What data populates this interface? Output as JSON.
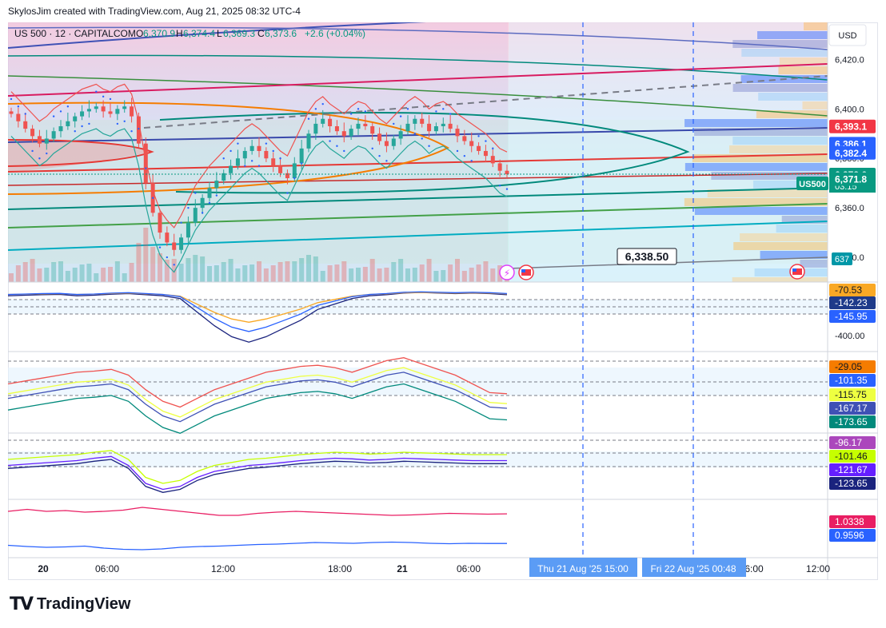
{
  "header": {
    "attribution": "SkylosJim created with TradingView.com, Aug 21, 2025 08:32 UTC-4"
  },
  "legend": {
    "symbol": "US 500 · 12 · CAPITALCOM",
    "open_label": "O",
    "open": "6,370.9",
    "high_label": "H",
    "high": "6,374.4",
    "low_label": "L",
    "low": "6,369.3",
    "close_label": "C",
    "close": "6,373.6",
    "change": "+2.6 (+0.04%)"
  },
  "colors": {
    "up": "#26a69a",
    "down": "#ef5350",
    "accent_blue": "#2962ff",
    "text": "#131722",
    "grid": "#e0e3eb"
  },
  "price_axis": {
    "currency": "USD",
    "ticks": [
      "6,420.0",
      "6,400.0",
      "6,380.0",
      "6,360.0",
      "6,340.0"
    ],
    "badges": [
      {
        "value": "6,393.1",
        "color": "#f23645"
      },
      {
        "value": "6,386.1",
        "color": "#2962ff"
      },
      {
        "value": "6,382.4",
        "color": "#2962ff"
      },
      {
        "value": "6,373.6",
        "color": "#089981"
      },
      {
        "value": "6,371.8",
        "color": "#089981"
      }
    ],
    "countdown": "03:15",
    "symbol_tag": "US500",
    "volume_badge": "637"
  },
  "annotation": {
    "price_label": "6,338.50"
  },
  "time_axis": {
    "ticks": [
      "20",
      "06:00",
      "12:00",
      "18:00",
      "21",
      "06:00",
      "6:00",
      "12:00"
    ],
    "cursor_labels": [
      "Thu 21 Aug '25   15:00",
      "Fri 22 Aug '25   00:48"
    ]
  },
  "panes": [
    {
      "name": "oscillator-1",
      "badges": [
        {
          "value": "-70.53",
          "color": "#f9a825",
          "text_color": "#131722"
        },
        {
          "value": "-142.23",
          "color": "#1e3a8a",
          "text_color": "#ffffff"
        },
        {
          "value": "-145.95",
          "color": "#2962ff",
          "text_color": "#ffffff"
        }
      ],
      "tick": "-400.00"
    },
    {
      "name": "oscillator-2",
      "badges": [
        {
          "value": "-29.05",
          "color": "#f57c00",
          "text_color": "#131722"
        },
        {
          "value": "-101.35",
          "color": "#2962ff",
          "text_color": "#ffffff"
        },
        {
          "value": "-115.75",
          "color": "#eeff41",
          "text_color": "#131722"
        },
        {
          "value": "-167.17",
          "color": "#3f51b5",
          "text_color": "#ffffff"
        },
        {
          "value": "-173.65",
          "color": "#00897b",
          "text_color": "#ffffff"
        }
      ]
    },
    {
      "name": "oscillator-3",
      "badges": [
        {
          "value": "-96.17",
          "color": "#ab47bc",
          "text_color": "#ffffff"
        },
        {
          "value": "-101.46",
          "color": "#c6ff00",
          "text_color": "#131722"
        },
        {
          "value": "-121.67",
          "color": "#651fff",
          "text_color": "#ffffff"
        },
        {
          "value": "-123.65",
          "color": "#1a237e",
          "text_color": "#ffffff"
        }
      ]
    },
    {
      "name": "ratio-pane",
      "badges": [
        {
          "value": "1.0338",
          "color": "#e91e63",
          "text_color": "#ffffff"
        },
        {
          "value": "0.9596",
          "color": "#2962ff",
          "text_color": "#ffffff"
        }
      ]
    }
  ],
  "chart_data": {
    "type": "candlestick",
    "symbol": "US 500",
    "interval": "12",
    "ylim": [
      6330,
      6435
    ],
    "close_series": [
      6398,
      6395,
      6392,
      6389,
      6386,
      6388,
      6391,
      6393,
      6395,
      6397,
      6399,
      6400,
      6401,
      6399,
      6398,
      6400,
      6401,
      6397,
      6386,
      6370,
      6358,
      6350,
      6346,
      6343,
      6348,
      6354,
      6360,
      6364,
      6368,
      6371,
      6374,
      6377,
      6380,
      6383,
      6385,
      6383,
      6380,
      6377,
      6374,
      6372,
      6378,
      6384,
      6390,
      6394,
      6396,
      6393,
      6391,
      6389,
      6392,
      6394,
      6393,
      6390,
      6387,
      6385,
      6388,
      6391,
      6394,
      6396,
      6394,
      6391,
      6393,
      6394,
      6392,
      6389,
      6387,
      6385,
      6383,
      6381,
      6378,
      6375,
      6373.6
    ],
    "ohlc_last": {
      "open": 6370.9,
      "high": 6374.4,
      "low": 6369.3,
      "close": 6373.6
    },
    "osc1": [
      -150,
      -148,
      -146,
      -145,
      -150,
      -148,
      -144,
      -142,
      -146,
      -150,
      -160,
      -210,
      -260,
      -300,
      -320,
      -300,
      -270,
      -240,
      -200,
      -180,
      -160,
      -150,
      -146,
      -140,
      -138,
      -140,
      -142,
      -140,
      -142,
      -146
    ],
    "osc2": [
      -150,
      -145,
      -140,
      -135,
      -130,
      -128,
      -125,
      -135,
      -160,
      -180,
      -190,
      -175,
      -160,
      -150,
      -140,
      -130,
      -125,
      -120,
      -118,
      -122,
      -130,
      -120,
      -110,
      -105,
      -115,
      -125,
      -135,
      -150,
      -165,
      -167
    ],
    "osc3": [
      -130,
      -128,
      -126,
      -124,
      -122,
      -118,
      -115,
      -130,
      -160,
      -170,
      -165,
      -150,
      -140,
      -135,
      -130,
      -128,
      -125,
      -122,
      -120,
      -118,
      -119,
      -121,
      -120,
      -118,
      -119,
      -120,
      -121,
      -122,
      -122,
      -122
    ],
    "ratio_a": [
      1.04,
      1.045,
      1.04,
      1.042,
      1.038,
      1.04,
      1.043,
      1.05,
      1.045,
      1.04,
      1.035,
      1.03,
      1.03,
      1.035,
      1.038,
      1.04,
      1.038,
      1.036,
      1.034,
      1.032,
      1.03,
      1.031,
      1.033,
      1.035,
      1.034,
      1.033,
      1.0338
    ],
    "ratio_b": [
      0.955,
      0.952,
      0.95,
      0.951,
      0.953,
      0.948,
      0.945,
      0.944,
      0.946,
      0.95,
      0.952,
      0.953,
      0.955,
      0.957,
      0.958,
      0.96,
      0.962,
      0.961,
      0.96,
      0.962,
      0.963,
      0.962,
      0.96,
      0.959,
      0.96,
      0.9596,
      0.9596
    ]
  }
}
